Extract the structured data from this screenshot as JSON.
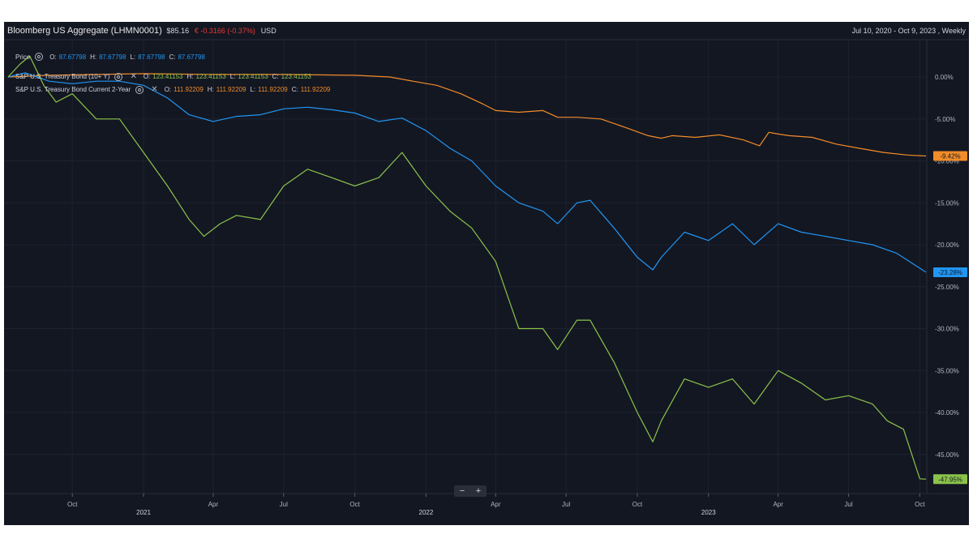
{
  "header": {
    "title": "Bloomberg US Aggregate (LHMN0001)",
    "price": "$85.16",
    "change": "€ -0.3166 (-0.37%)",
    "currency": "USD",
    "range": "Jul 10, 2020 - Oct 9, 2023 , Weekly"
  },
  "legend": [
    {
      "name": "Price",
      "o": "87.67798",
      "h": "87.67798",
      "l": "87.67798",
      "c": "87.67798",
      "color": "#2196f3",
      "icon": "settings-gear-icon"
    },
    {
      "name": "S&P U.S. Treasury Bond (10+ Y)",
      "o": "123.41153",
      "h": "123.41153",
      "l": "123.41153",
      "c": "123.41153",
      "color": "#8bc34a",
      "icon": "settings-gear-icon"
    },
    {
      "name": "S&P U.S. Treasury Bond Current 2-Year",
      "o": "111.92209",
      "h": "111.92209",
      "l": "111.92209",
      "c": "111.92209",
      "color": "#f28c28",
      "icon": "settings-gear-icon"
    }
  ],
  "zoom": {
    "minus": "−",
    "plus": "+"
  },
  "chart_data": {
    "type": "line",
    "x_domain": [
      "2020-07-10",
      "2023-10-09"
    ],
    "ylim": [
      -50,
      4
    ],
    "y_ticks": [
      0,
      -5,
      -10,
      -15,
      -20,
      -25,
      -30,
      -35,
      -40,
      -45
    ],
    "y_tick_labels": [
      "0.00%",
      "-5.00%",
      "-10.00%",
      "-15.00%",
      "-20.00%",
      "-25.00%",
      "-30.00%",
      "-35.00%",
      "-40.00%",
      "-45.00%"
    ],
    "x_ticks": [
      {
        "date": "2020-10-01",
        "label": "Oct",
        "major": false
      },
      {
        "date": "2021-01-01",
        "label": "2021",
        "major": true
      },
      {
        "date": "2021-04-01",
        "label": "Apr",
        "major": false
      },
      {
        "date": "2021-07-01",
        "label": "Jul",
        "major": false
      },
      {
        "date": "2021-10-01",
        "label": "Oct",
        "major": false
      },
      {
        "date": "2022-01-01",
        "label": "2022",
        "major": true
      },
      {
        "date": "2022-04-01",
        "label": "Apr",
        "major": false
      },
      {
        "date": "2022-07-01",
        "label": "Jul",
        "major": false
      },
      {
        "date": "2022-10-01",
        "label": "Oct",
        "major": false
      },
      {
        "date": "2023-01-01",
        "label": "2023",
        "major": true
      },
      {
        "date": "2023-04-01",
        "label": "Apr",
        "major": false
      },
      {
        "date": "2023-07-01",
        "label": "Jul",
        "major": false
      },
      {
        "date": "2023-10-01",
        "label": "Oct",
        "major": false
      }
    ],
    "grid": true,
    "series": [
      {
        "name": "S&P U.S. Treasury Bond Current 2-Year",
        "color": "#f28c28",
        "last_label": "-9.42%",
        "points": [
          [
            "2020-07-10",
            0
          ],
          [
            "2020-09-01",
            0.2
          ],
          [
            "2020-11-01",
            0.3
          ],
          [
            "2021-01-01",
            0.4
          ],
          [
            "2021-04-01",
            0.3
          ],
          [
            "2021-07-01",
            0.3
          ],
          [
            "2021-10-01",
            0.2
          ],
          [
            "2021-11-15",
            0
          ],
          [
            "2021-12-15",
            -0.5
          ],
          [
            "2022-01-15",
            -1
          ],
          [
            "2022-02-15",
            -2
          ],
          [
            "2022-03-15",
            -3.2
          ],
          [
            "2022-04-01",
            -4
          ],
          [
            "2022-05-01",
            -4.2
          ],
          [
            "2022-06-01",
            -4
          ],
          [
            "2022-06-20",
            -4.8
          ],
          [
            "2022-07-15",
            -4.8
          ],
          [
            "2022-08-15",
            -5
          ],
          [
            "2022-09-15",
            -6
          ],
          [
            "2022-10-15",
            -7
          ],
          [
            "2022-11-01",
            -7.3
          ],
          [
            "2022-11-15",
            -7
          ],
          [
            "2022-12-15",
            -7.2
          ],
          [
            "2023-01-15",
            -6.9
          ],
          [
            "2023-02-15",
            -7.5
          ],
          [
            "2023-03-08",
            -8.2
          ],
          [
            "2023-03-20",
            -6.6
          ],
          [
            "2023-04-01",
            -6.8
          ],
          [
            "2023-04-15",
            -7
          ],
          [
            "2023-05-15",
            -7.2
          ],
          [
            "2023-06-15",
            -8
          ],
          [
            "2023-07-15",
            -8.5
          ],
          [
            "2023-08-15",
            -9
          ],
          [
            "2023-09-15",
            -9.3
          ],
          [
            "2023-10-09",
            -9.42
          ]
        ]
      },
      {
        "name": "Price",
        "color": "#2196f3",
        "last_label": "-23.28%",
        "points": [
          [
            "2020-07-10",
            0
          ],
          [
            "2020-08-01",
            0.5
          ],
          [
            "2020-09-01",
            -0.5
          ],
          [
            "2020-10-01",
            -0.8
          ],
          [
            "2020-11-01",
            -0.5
          ],
          [
            "2020-12-01",
            -0.5
          ],
          [
            "2021-01-01",
            -1
          ],
          [
            "2021-02-01",
            -2.5
          ],
          [
            "2021-03-01",
            -4.5
          ],
          [
            "2021-04-01",
            -5.3
          ],
          [
            "2021-05-01",
            -4.7
          ],
          [
            "2021-06-01",
            -4.5
          ],
          [
            "2021-07-01",
            -3.8
          ],
          [
            "2021-08-01",
            -3.6
          ],
          [
            "2021-09-01",
            -3.9
          ],
          [
            "2021-10-01",
            -4.3
          ],
          [
            "2021-11-01",
            -5.3
          ],
          [
            "2021-12-01",
            -4.9
          ],
          [
            "2022-01-01",
            -6.4
          ],
          [
            "2022-02-01",
            -8.5
          ],
          [
            "2022-03-01",
            -10
          ],
          [
            "2022-04-01",
            -13
          ],
          [
            "2022-05-01",
            -15
          ],
          [
            "2022-06-01",
            -16
          ],
          [
            "2022-06-20",
            -17.5
          ],
          [
            "2022-07-15",
            -15
          ],
          [
            "2022-08-01",
            -14.7
          ],
          [
            "2022-09-01",
            -18
          ],
          [
            "2022-10-01",
            -21.5
          ],
          [
            "2022-10-21",
            -23
          ],
          [
            "2022-11-01",
            -21.5
          ],
          [
            "2022-12-01",
            -18.5
          ],
          [
            "2023-01-01",
            -19.5
          ],
          [
            "2023-02-01",
            -17.5
          ],
          [
            "2023-03-01",
            -20
          ],
          [
            "2023-04-01",
            -17.5
          ],
          [
            "2023-05-01",
            -18.5
          ],
          [
            "2023-06-01",
            -19
          ],
          [
            "2023-07-01",
            -19.5
          ],
          [
            "2023-08-01",
            -20
          ],
          [
            "2023-09-01",
            -21
          ],
          [
            "2023-10-09",
            -23.28
          ]
        ]
      },
      {
        "name": "S&P U.S. Treasury Bond (10+ Y)",
        "color": "#8bc34a",
        "last_label": "-47.95%",
        "points": [
          [
            "2020-07-10",
            0
          ],
          [
            "2020-07-25",
            1.5
          ],
          [
            "2020-08-07",
            2.5
          ],
          [
            "2020-08-25",
            -1
          ],
          [
            "2020-09-10",
            -3
          ],
          [
            "2020-10-01",
            -2
          ],
          [
            "2020-11-01",
            -5
          ],
          [
            "2020-12-01",
            -5
          ],
          [
            "2021-01-01",
            -9
          ],
          [
            "2021-02-01",
            -13
          ],
          [
            "2021-03-01",
            -17
          ],
          [
            "2021-03-20",
            -19
          ],
          [
            "2021-04-10",
            -17.5
          ],
          [
            "2021-05-01",
            -16.5
          ],
          [
            "2021-06-01",
            -17
          ],
          [
            "2021-07-01",
            -13
          ],
          [
            "2021-08-01",
            -11
          ],
          [
            "2021-09-01",
            -12
          ],
          [
            "2021-10-01",
            -13
          ],
          [
            "2021-11-01",
            -12
          ],
          [
            "2021-12-01",
            -9
          ],
          [
            "2022-01-01",
            -13
          ],
          [
            "2022-02-01",
            -16
          ],
          [
            "2022-03-01",
            -18
          ],
          [
            "2022-04-01",
            -22
          ],
          [
            "2022-05-01",
            -30
          ],
          [
            "2022-06-01",
            -30
          ],
          [
            "2022-06-20",
            -32.5
          ],
          [
            "2022-07-15",
            -29
          ],
          [
            "2022-08-01",
            -29
          ],
          [
            "2022-09-01",
            -34
          ],
          [
            "2022-10-01",
            -40
          ],
          [
            "2022-10-21",
            -43.5
          ],
          [
            "2022-11-01",
            -41
          ],
          [
            "2022-12-01",
            -36
          ],
          [
            "2023-01-01",
            -37
          ],
          [
            "2023-02-01",
            -36
          ],
          [
            "2023-03-01",
            -39
          ],
          [
            "2023-04-01",
            -35
          ],
          [
            "2023-05-01",
            -36.5
          ],
          [
            "2023-06-01",
            -38.5
          ],
          [
            "2023-07-01",
            -38
          ],
          [
            "2023-08-01",
            -39
          ],
          [
            "2023-08-20",
            -41
          ],
          [
            "2023-09-10",
            -42
          ],
          [
            "2023-10-01",
            -47.9
          ],
          [
            "2023-10-09",
            -47.95
          ]
        ]
      }
    ]
  }
}
